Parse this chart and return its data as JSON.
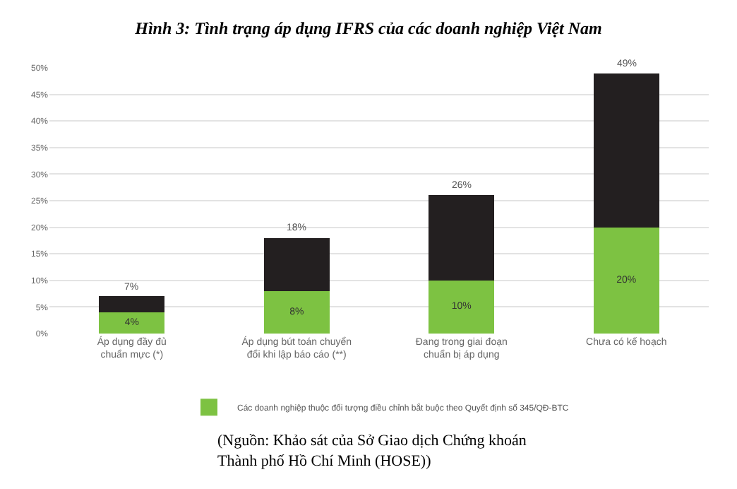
{
  "chart_data": {
    "type": "bar",
    "title": "Hình 3: Tình trạng áp dụng IFRS của các doanh nghiệp Việt Nam",
    "categories": [
      "Áp dụng đầy đủ\nchuẩn mực (*)",
      "Áp dụng bút toán chuyển\nđổi khi lập báo cáo (**)",
      "Đang trong giai đoạn\nchuẩn bị áp dụng",
      "Chưa có kế hoạch"
    ],
    "stacked": true,
    "series": [
      {
        "name": "Các doanh nghiệp thuộc đối tượng điều chỉnh bắt buộc theo Quyết định số 345/QĐ-BTC",
        "color": "#7dc242",
        "values": [
          4,
          8,
          10,
          20
        ],
        "value_labels": [
          "4%",
          "8%",
          "10%",
          "20%"
        ]
      },
      {
        "color": "#231f20",
        "values": [
          3,
          10,
          16,
          29
        ]
      }
    ],
    "totals": [
      "7%",
      "18%",
      "26%",
      "49%"
    ],
    "ylim": [
      0,
      50
    ],
    "yticks": [
      {
        "value": 0,
        "label": "0%"
      },
      {
        "value": 5,
        "label": "5%"
      },
      {
        "value": 10,
        "label": "10%"
      },
      {
        "value": 15,
        "label": "15%"
      },
      {
        "value": 20,
        "label": "20%"
      },
      {
        "value": 25,
        "label": "25%"
      },
      {
        "value": 30,
        "label": "30%"
      },
      {
        "value": 35,
        "label": "35%"
      },
      {
        "value": 40,
        "label": "40%"
      },
      {
        "value": 45,
        "label": "45%"
      },
      {
        "value": 50,
        "label": "50%"
      }
    ],
    "grid": "y",
    "legend": "bottom",
    "annotations": [
      "(Nguồn: Khảo sát của Sở Giao dịch Chứng khoán\nThành phố Hồ Chí Minh (HOSE))"
    ]
  }
}
